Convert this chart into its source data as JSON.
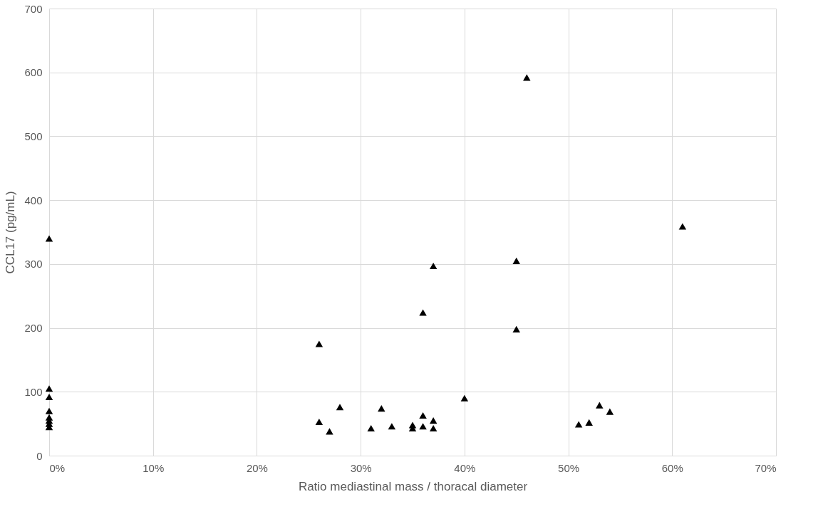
{
  "chart_data": {
    "type": "scatter",
    "xlabel": "Ratio mediastinal mass / thoracal diameter",
    "ylabel": "CCL17 (pg/mL)",
    "x": [
      0,
      0,
      0,
      0,
      0,
      0,
      0,
      0,
      0.26,
      0.26,
      0.27,
      0.28,
      0.31,
      0.32,
      0.33,
      0.35,
      0.35,
      0.36,
      0.36,
      0.36,
      0.37,
      0.37,
      0.37,
      0.4,
      0.45,
      0.45,
      0.46,
      0.51,
      0.52,
      0.53,
      0.54,
      0.61
    ],
    "series": [
      {
        "color": "#000000",
        "values": [
          340,
          105,
          92,
          70,
          60,
          55,
          50,
          45,
          175,
          53,
          38,
          76,
          43,
          74,
          46,
          48,
          43,
          224,
          63,
          46,
          297,
          55,
          43,
          90,
          305,
          198,
          592,
          49,
          52,
          79,
          69,
          359
        ]
      }
    ],
    "xlim": [
      0,
      0.7
    ],
    "xticks": [
      {
        "value": 0,
        "label": "0%"
      },
      {
        "value": 0.1,
        "label": "10%"
      },
      {
        "value": 0.2,
        "label": "20%"
      },
      {
        "value": 0.3,
        "label": "30%"
      },
      {
        "value": 0.4,
        "label": "40%"
      },
      {
        "value": 0.5,
        "label": "50%"
      },
      {
        "value": 0.6,
        "label": "60%"
      },
      {
        "value": 0.7,
        "label": "70%"
      }
    ],
    "ylim": [
      0,
      700
    ],
    "yticks": [
      0,
      100,
      200,
      300,
      400,
      500,
      600,
      700
    ],
    "grid": true,
    "marker": "triangle",
    "legend": false
  }
}
